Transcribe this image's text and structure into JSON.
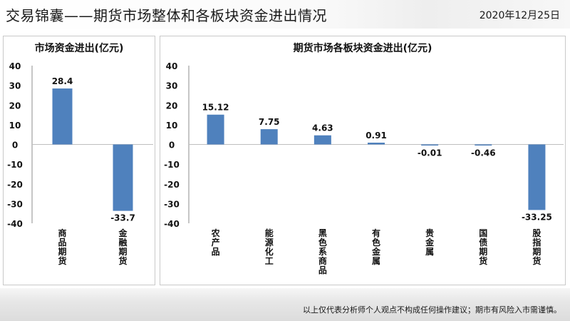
{
  "header": {
    "title": "交易锦囊——期货市场整体和各板块资金进出情况",
    "date": "2020年12月25日"
  },
  "footer": {
    "disclaimer": "以上仅代表分析师个人观点不构成任何操作建议；期市有风险入市需谨慎。"
  },
  "colors": {
    "bar": "#4f81bd"
  },
  "chart_data": [
    {
      "type": "bar",
      "title": "市场资金进出(亿元)",
      "categories": [
        "商品期货",
        "金融期货"
      ],
      "values": [
        28.4,
        -33.7
      ],
      "data_labels": [
        "28.4",
        "-33.7"
      ],
      "yticks": [
        "40",
        "30",
        "20",
        "10",
        "0",
        "-10",
        "-20",
        "-30",
        "-40"
      ],
      "ylim": [
        -40,
        40
      ],
      "grid": false
    },
    {
      "type": "bar",
      "title": "期货市场各板块资金进出(亿元)",
      "categories": [
        "农产品",
        "能源化工",
        "黑色系商品",
        "有色金属",
        "贵金属",
        "国债期货",
        "股指期货"
      ],
      "values": [
        15.12,
        7.75,
        4.63,
        0.91,
        -0.01,
        -0.46,
        -33.25
      ],
      "data_labels": [
        "15.12",
        "7.75",
        "4.63",
        "0.91",
        "-0.01",
        "-0.46",
        "-33.25"
      ],
      "yticks": [
        "40",
        "30",
        "20",
        "10",
        "0",
        "-10",
        "-20",
        "-30",
        "-40"
      ],
      "ylim": [
        -40,
        40
      ],
      "grid": false
    }
  ]
}
